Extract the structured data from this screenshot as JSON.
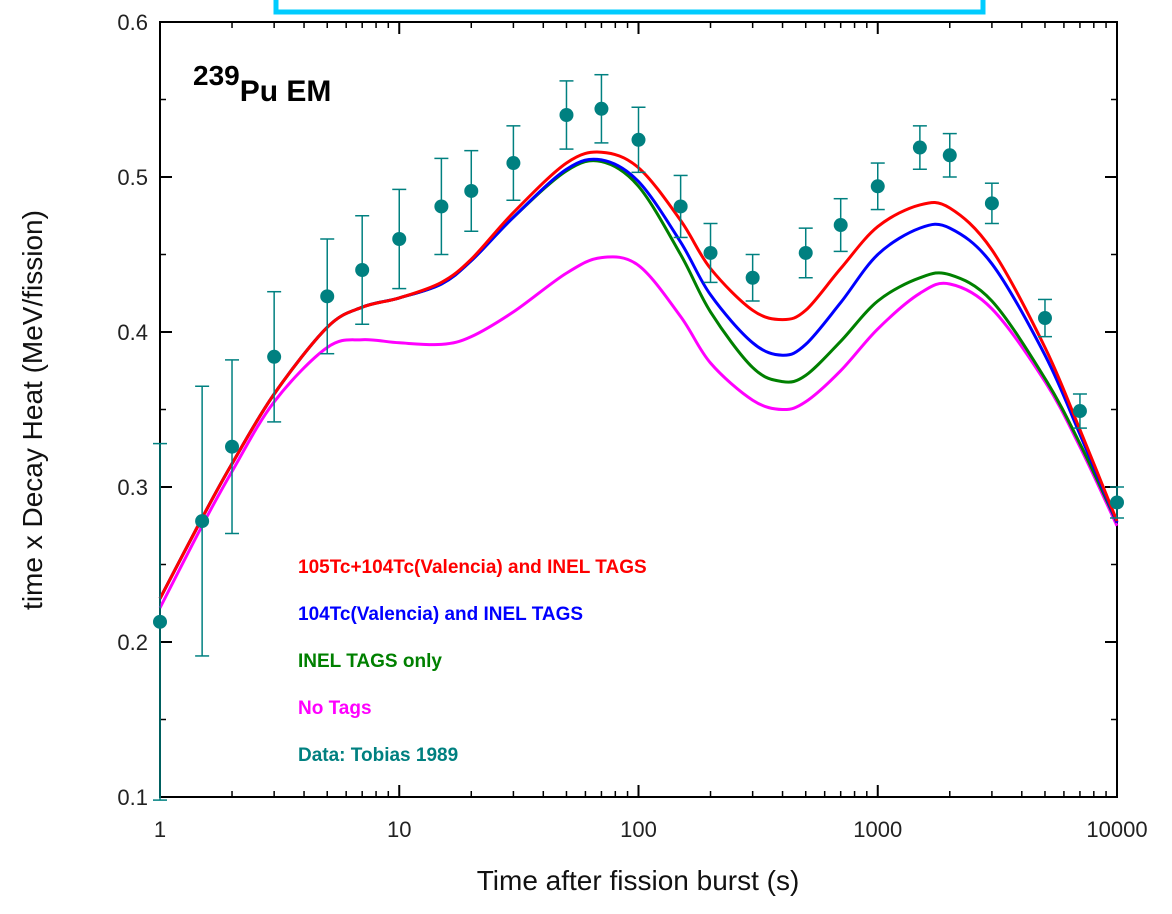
{
  "chart_data": {
    "type": "line",
    "title_main": "239",
    "title_suffix": "Pu EM",
    "xlabel": "Time after fission burst (s)",
    "ylabel": "time x Decay Heat (MeV/fission)",
    "xscale": "log",
    "xlim": [
      1,
      10000
    ],
    "ylim": [
      0.1,
      0.6
    ],
    "x_ticks": [
      {
        "value": 1,
        "label": "1"
      },
      {
        "value": 10,
        "label": "10"
      },
      {
        "value": 100,
        "label": "100"
      },
      {
        "value": 1000,
        "label": "1000"
      },
      {
        "value": 10000,
        "label": "10000"
      }
    ],
    "y_ticks": [
      {
        "value": 0.1,
        "label": "0.1"
      },
      {
        "value": 0.2,
        "label": "0.2"
      },
      {
        "value": 0.3,
        "label": "0.3"
      },
      {
        "value": 0.4,
        "label": "0.4"
      },
      {
        "value": 0.5,
        "label": "0.5"
      },
      {
        "value": 0.6,
        "label": "0.6"
      }
    ],
    "grid": false,
    "legend_position": "bottom-left",
    "series": [
      {
        "name": "105Tc+104Tc(Valencia) and INEL TAGS",
        "color": "#ff0000",
        "x": [
          1,
          1.5,
          2,
          3,
          5,
          7,
          10,
          15,
          20,
          30,
          50,
          70,
          100,
          150,
          200,
          300,
          400,
          500,
          700,
          1000,
          1500,
          2000,
          3000,
          5000,
          7000,
          10000
        ],
        "y": [
          0.228,
          0.28,
          0.315,
          0.36,
          0.403,
          0.416,
          0.422,
          0.432,
          0.447,
          0.477,
          0.509,
          0.516,
          0.506,
          0.472,
          0.441,
          0.414,
          0.408,
          0.414,
          0.441,
          0.468,
          0.482,
          0.48,
          0.453,
          0.39,
          0.337,
          0.278
        ]
      },
      {
        "name": "104Tc(Valencia) and INEL TAGS",
        "color": "#0000ff",
        "x": [
          1,
          1.5,
          2,
          3,
          5,
          7,
          10,
          15,
          20,
          30,
          50,
          70,
          100,
          150,
          200,
          300,
          400,
          500,
          700,
          1000,
          1500,
          2000,
          3000,
          5000,
          7000,
          10000
        ],
        "y": [
          0.228,
          0.28,
          0.315,
          0.36,
          0.403,
          0.416,
          0.422,
          0.431,
          0.446,
          0.474,
          0.505,
          0.511,
          0.497,
          0.458,
          0.424,
          0.393,
          0.385,
          0.392,
          0.419,
          0.45,
          0.467,
          0.467,
          0.444,
          0.385,
          0.334,
          0.277
        ]
      },
      {
        "name": "INEL TAGS only",
        "color": "#008000",
        "x": [
          1,
          1.5,
          2,
          3,
          5,
          7,
          10,
          15,
          20,
          30,
          50,
          70,
          100,
          150,
          200,
          300,
          400,
          500,
          700,
          1000,
          1500,
          2000,
          3000,
          5000,
          7000,
          10000
        ],
        "y": [
          0.228,
          0.28,
          0.315,
          0.36,
          0.403,
          0.416,
          0.422,
          0.431,
          0.446,
          0.474,
          0.504,
          0.51,
          0.494,
          0.45,
          0.413,
          0.377,
          0.368,
          0.372,
          0.394,
          0.42,
          0.435,
          0.437,
          0.42,
          0.37,
          0.328,
          0.277
        ]
      },
      {
        "name": "No Tags",
        "color": "#ff00ff",
        "x": [
          1,
          1.5,
          2,
          3,
          5,
          7,
          10,
          15,
          20,
          30,
          50,
          70,
          100,
          150,
          200,
          300,
          400,
          500,
          700,
          1000,
          1500,
          2000,
          3000,
          5000,
          7000,
          10000
        ],
        "y": [
          0.222,
          0.275,
          0.31,
          0.355,
          0.39,
          0.395,
          0.393,
          0.392,
          0.397,
          0.413,
          0.438,
          0.448,
          0.443,
          0.41,
          0.38,
          0.356,
          0.35,
          0.355,
          0.375,
          0.402,
          0.425,
          0.431,
          0.415,
          0.368,
          0.326,
          0.275
        ]
      }
    ],
    "data_series": {
      "name": "Data: Tobias 1989",
      "color": "#008080",
      "points": [
        {
          "x": 1,
          "y": 0.213,
          "err": 0.115
        },
        {
          "x": 1.5,
          "y": 0.278,
          "err": 0.087
        },
        {
          "x": 2,
          "y": 0.326,
          "err": 0.056
        },
        {
          "x": 3,
          "y": 0.384,
          "err": 0.042
        },
        {
          "x": 5,
          "y": 0.423,
          "err": 0.037
        },
        {
          "x": 7,
          "y": 0.44,
          "err": 0.035
        },
        {
          "x": 10,
          "y": 0.46,
          "err": 0.032
        },
        {
          "x": 15,
          "y": 0.481,
          "err": 0.031
        },
        {
          "x": 20,
          "y": 0.491,
          "err": 0.026
        },
        {
          "x": 30,
          "y": 0.509,
          "err": 0.024
        },
        {
          "x": 50,
          "y": 0.54,
          "err": 0.022
        },
        {
          "x": 70,
          "y": 0.544,
          "err": 0.022
        },
        {
          "x": 100,
          "y": 0.524,
          "err": 0.021
        },
        {
          "x": 150,
          "y": 0.481,
          "err": 0.02
        },
        {
          "x": 200,
          "y": 0.451,
          "err": 0.019
        },
        {
          "x": 300,
          "y": 0.435,
          "err": 0.015
        },
        {
          "x": 500,
          "y": 0.451,
          "err": 0.016
        },
        {
          "x": 700,
          "y": 0.469,
          "err": 0.017
        },
        {
          "x": 1000,
          "y": 0.494,
          "err": 0.015
        },
        {
          "x": 1500,
          "y": 0.519,
          "err": 0.014
        },
        {
          "x": 2000,
          "y": 0.514,
          "err": 0.014
        },
        {
          "x": 3000,
          "y": 0.483,
          "err": 0.013
        },
        {
          "x": 5000,
          "y": 0.409,
          "err": 0.012
        },
        {
          "x": 7000,
          "y": 0.349,
          "err": 0.011
        },
        {
          "x": 10000,
          "y": 0.29,
          "err": 0.01
        }
      ]
    },
    "legend": [
      {
        "label": "105Tc+104Tc(Valencia) and INEL TAGS",
        "color": "#ff0000"
      },
      {
        "label": "104Tc(Valencia) and INEL TAGS",
        "color": "#0000ff"
      },
      {
        "label": "INEL TAGS only",
        "color": "#008000"
      },
      {
        "label": "No Tags",
        "color": "#ff00ff"
      },
      {
        "label": "Data: Tobias 1989",
        "color": "#008080"
      }
    ],
    "header_box_color": "#00ccff"
  }
}
